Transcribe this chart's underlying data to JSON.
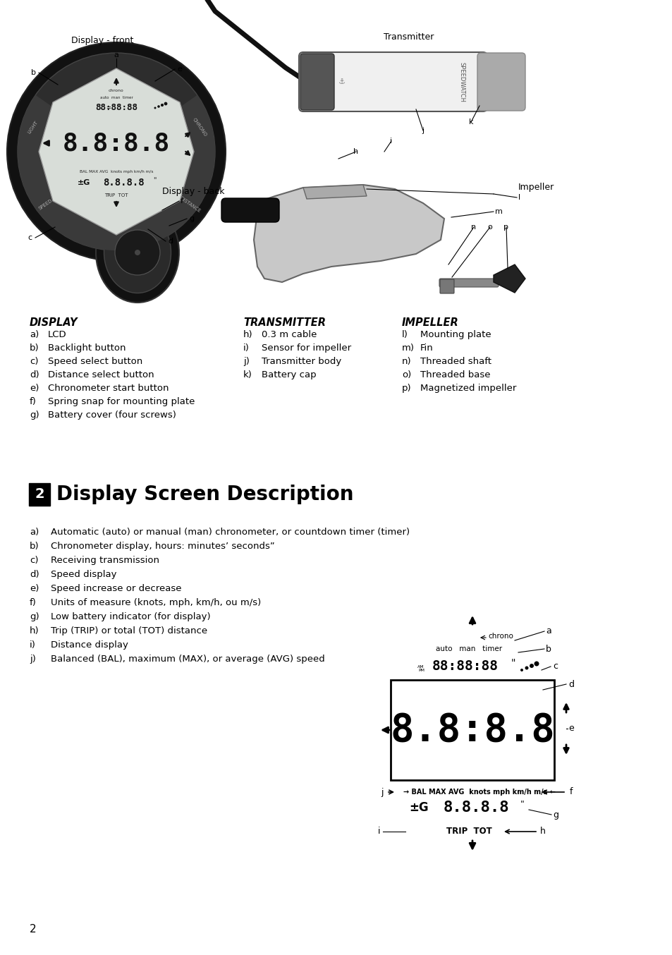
{
  "bg_color": "#ffffff",
  "display_label": "Display - front",
  "display_back_label": "Display - back",
  "transmitter_label": "Transmitter",
  "impeller_label": "Impeller",
  "display_items_title": "DISPLAY",
  "display_items": [
    [
      "a)",
      "LCD"
    ],
    [
      "b)",
      "Backlight button"
    ],
    [
      "c)",
      "Speed select button"
    ],
    [
      "d)",
      "Distance select button"
    ],
    [
      "e)",
      "Chronometer start button"
    ],
    [
      "f)",
      "Spring snap for mounting plate"
    ],
    [
      "g)",
      "Battery cover (four screws)"
    ]
  ],
  "transmitter_items_title": "TRANSMITTER",
  "transmitter_items": [
    [
      "h)",
      "0.3 m cable"
    ],
    [
      "i)",
      "Sensor for impeller"
    ],
    [
      "j)",
      "Transmitter body"
    ],
    [
      "k)",
      "Battery cap"
    ]
  ],
  "impeller_items_title": "IMPELLER",
  "impeller_items": [
    [
      "l)",
      "Mounting plate"
    ],
    [
      "m)",
      "Fin"
    ],
    [
      "n)",
      "Threaded shaft"
    ],
    [
      "o)",
      "Threaded base"
    ],
    [
      "p)",
      "Magnetized impeller"
    ]
  ],
  "section2_items": [
    [
      "a)",
      "Automatic (auto) or manual (man) chronometer, or countdown timer (timer)"
    ],
    [
      "b)",
      "Chronometer display, hours: minutes’ seconds”"
    ],
    [
      "c)",
      "Receiving transmission"
    ],
    [
      "d)",
      "Speed display"
    ],
    [
      "e)",
      "Speed increase or decrease"
    ],
    [
      "f)",
      "Units of measure (knots, mph, km/h, ou m/s)"
    ],
    [
      "g)",
      "Low battery indicator (for display)"
    ],
    [
      "h)",
      "Trip (TRIP) or total (TOT) distance"
    ],
    [
      "i)",
      "Distance display"
    ],
    [
      "j)",
      "Balanced (BAL), maximum (MAX), or average (AVG) speed"
    ]
  ],
  "page_number": "2"
}
